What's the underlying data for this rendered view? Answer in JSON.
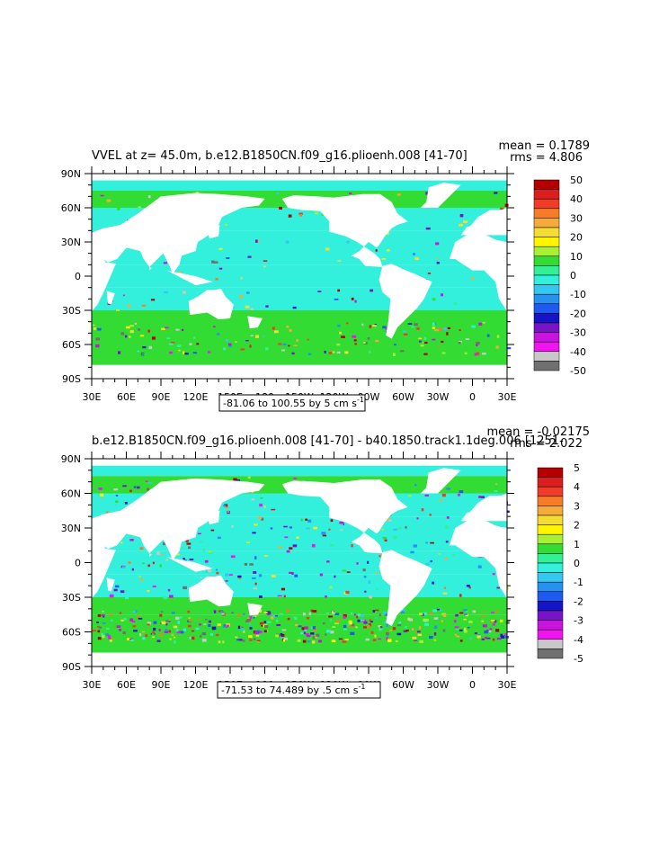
{
  "chart_data": [
    {
      "type": "heatmap",
      "title": "VVEL at z=  45.0m, b.e12.B1850CN.f09_g16.plioenh.008 [41-70]",
      "stats": {
        "mean": "mean = 0.1789",
        "rms": "rms = 4.806"
      },
      "contour_note": "-81.06 to 100.55 by 5 cm s",
      "contour_unit_sup": "-1",
      "xticks": [
        "30E",
        "60E",
        "90E",
        "120E",
        "150E",
        "180",
        "150W",
        "120W",
        "90W",
        "60W",
        "30W",
        "0",
        "30E"
      ],
      "yticks": [
        "90N",
        "60N",
        "30N",
        "0",
        "30S",
        "60S",
        "90S"
      ],
      "xlim": [
        30,
        390
      ],
      "ylim": [
        -90,
        90
      ],
      "colorbar": {
        "levels": [
          "50",
          "40",
          "30",
          "20",
          "10",
          "0",
          "-10",
          "-20",
          "-30",
          "-40",
          "-50"
        ],
        "colors": [
          "#b40000",
          "#dc1e1e",
          "#f03c28",
          "#f57d28",
          "#f5aa3c",
          "#f5dc32",
          "#fff500",
          "#aaf032",
          "#32dc32",
          "#32f096",
          "#32f0dc",
          "#32c8f0",
          "#2890f0",
          "#1e5af0",
          "#1414c8",
          "#7814c8",
          "#c814dc",
          "#f014f0",
          "#c8c8c8",
          "#707070"
        ]
      },
      "field_colors": {
        "ocean": "#32f0dc",
        "band": "#32dc32",
        "land": "#ffffff"
      }
    },
    {
      "type": "heatmap",
      "title": "b.e12.B1850CN.f09_g16.plioenh.008 [41-70] - b40.1850.track1.1deg.006 [1251-",
      "stats": {
        "mean": "mean = -0.02175",
        "rms": "rms = 2.022"
      },
      "contour_note": "-71.53 to 74.489 by .5 cm s",
      "contour_unit_sup": "-1",
      "xticks": [
        "30E",
        "60E",
        "90E",
        "120E",
        "150E",
        "180",
        "150W",
        "120W",
        "90W",
        "60W",
        "30W",
        "0",
        "30E"
      ],
      "yticks": [
        "90N",
        "60N",
        "30N",
        "0",
        "30S",
        "60S",
        "90S"
      ],
      "xlim": [
        30,
        390
      ],
      "ylim": [
        -90,
        90
      ],
      "colorbar": {
        "levels": [
          "5",
          "4",
          "3",
          "2",
          "1",
          "0",
          "-1",
          "-2",
          "-3",
          "-4",
          "-5"
        ],
        "colors": [
          "#b40000",
          "#dc1e1e",
          "#f03c28",
          "#f57d28",
          "#f5aa3c",
          "#f5dc32",
          "#fff500",
          "#aaf032",
          "#32dc32",
          "#32f096",
          "#32f0dc",
          "#32c8f0",
          "#2890f0",
          "#1e5af0",
          "#1414c8",
          "#7814c8",
          "#c814dc",
          "#f014f0",
          "#c8c8c8",
          "#707070"
        ]
      },
      "field_colors": {
        "ocean": "#32f0dc",
        "band": "#32dc32",
        "land": "#ffffff"
      }
    }
  ]
}
